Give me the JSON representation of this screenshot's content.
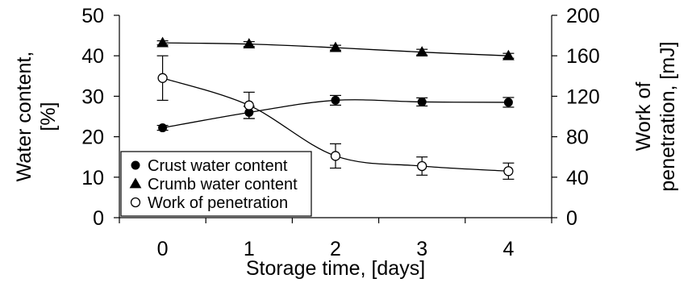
{
  "chart_data": {
    "type": "line",
    "xlabel": "Storage time, [days]",
    "ylabel_left": [
      "Water content,",
      "[%]"
    ],
    "ylabel_right": [
      "Work of",
      "penetration, [mJ]"
    ],
    "x_ticks": [
      0,
      1,
      2,
      3,
      4
    ],
    "xlim": [
      -0.5,
      4.5
    ],
    "ylim_left": [
      0,
      50
    ],
    "ylim_right": [
      0,
      200
    ],
    "yticks_left": [
      0,
      10,
      20,
      30,
      40,
      50
    ],
    "yticks_right": [
      0,
      40,
      80,
      120,
      160,
      200
    ],
    "legend_position": "bottom-left",
    "series": [
      {
        "name": "Crust water content",
        "marker": "filled-circle",
        "axis": "left",
        "x": [
          0,
          1,
          2,
          3,
          4
        ],
        "y": [
          22.2,
          26.0,
          29.0,
          28.6,
          28.5
        ],
        "err": [
          0.6,
          1.5,
          1.2,
          1.0,
          1.2
        ]
      },
      {
        "name": "Crumb water content",
        "marker": "filled-triangle",
        "axis": "left",
        "x": [
          0,
          1,
          2,
          3,
          4
        ],
        "y": [
          43.2,
          42.9,
          42.0,
          40.9,
          40.0
        ],
        "err": [
          0.5,
          0.6,
          0.6,
          0.7,
          0.6
        ]
      },
      {
        "name": "Work of penetration",
        "marker": "open-circle",
        "axis": "right",
        "x": [
          0,
          1,
          2,
          3,
          4
        ],
        "y": [
          138,
          111,
          61,
          51,
          46
        ],
        "err": [
          22,
          13,
          12,
          9,
          8
        ]
      }
    ]
  }
}
